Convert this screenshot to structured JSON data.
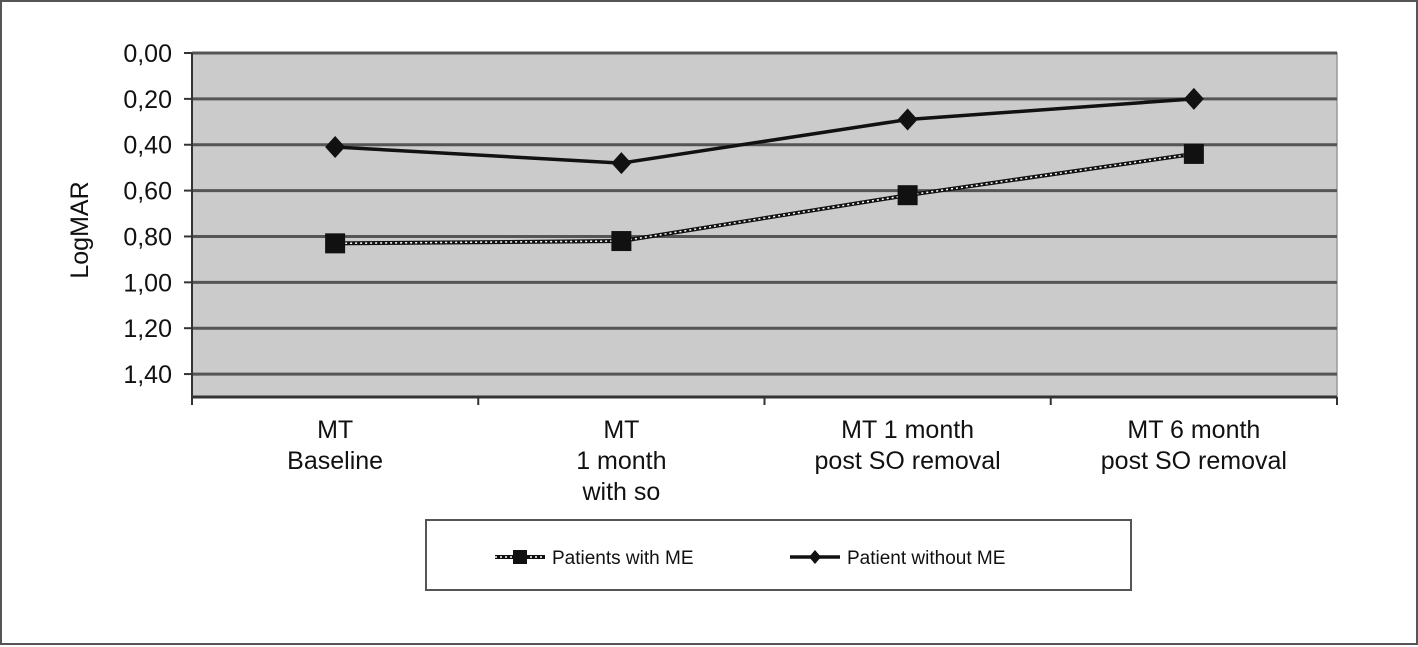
{
  "chart_data": {
    "type": "line",
    "title": "",
    "xlabel": "",
    "ylabel": "LogMAR",
    "y_inverted": true,
    "ylim": [
      0,
      1.5
    ],
    "yticks": [
      "0,00",
      "0,20",
      "0,40",
      "0,60",
      "0,80",
      "1,00",
      "1,20",
      "1,40"
    ],
    "ytick_values": [
      0,
      0.2,
      0.4,
      0.6,
      0.8,
      1.0,
      1.2,
      1.4
    ],
    "categories": [
      [
        "MT",
        "Baseline"
      ],
      [
        "MT",
        "1 month",
        "with so"
      ],
      [
        "MT 1 month",
        "post SO removal"
      ],
      [
        "MT 6 month",
        "post SO removal"
      ]
    ],
    "series": [
      {
        "name": "Patients with ME",
        "marker": "square",
        "line": "dotted",
        "values": [
          0.83,
          0.82,
          0.62,
          0.44
        ]
      },
      {
        "name": "Patient without ME",
        "marker": "diamond",
        "line": "solid",
        "values": [
          0.41,
          0.48,
          0.29,
          0.2
        ]
      }
    ],
    "grid": true,
    "legend_position": "bottom",
    "colors": {
      "plot_bg": "#cbcbcb",
      "grid": "#555555",
      "line": "#111111"
    }
  }
}
